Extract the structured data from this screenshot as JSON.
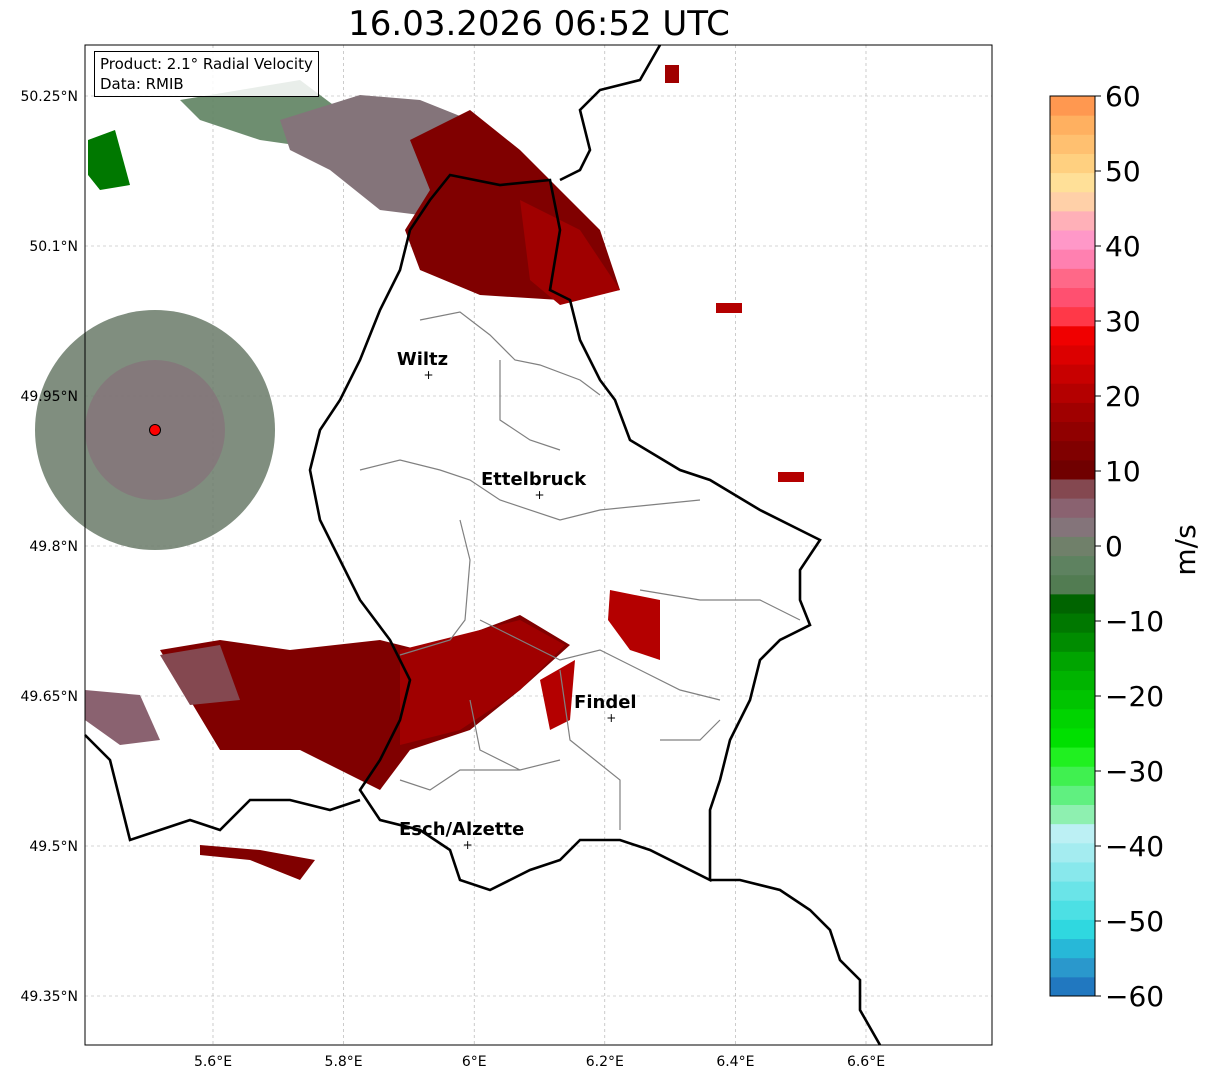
{
  "title": "16.03.2026 06:52 UTC",
  "legend": {
    "product": "Product: 2.1° Radial Velocity",
    "source": "Data: RMIB"
  },
  "axes": {
    "lon_ticks": [
      {
        "v": 5.6,
        "label": "5.6°E"
      },
      {
        "v": 5.8,
        "label": "5.8°E"
      },
      {
        "v": 6.0,
        "label": "6°E"
      },
      {
        "v": 6.2,
        "label": "6.2°E"
      },
      {
        "v": 6.4,
        "label": "6.4°E"
      },
      {
        "v": 6.6,
        "label": "6.6°E"
      }
    ],
    "lat_ticks": [
      {
        "v": 50.25,
        "label": "50.25°N"
      },
      {
        "v": 50.1,
        "label": "50.1°N"
      },
      {
        "v": 49.95,
        "label": "49.95°N"
      },
      {
        "v": 49.8,
        "label": "49.8°N"
      },
      {
        "v": 49.65,
        "label": "49.65°N"
      },
      {
        "v": 49.5,
        "label": "49.5°N"
      },
      {
        "v": 49.35,
        "label": "49.35°N"
      }
    ]
  },
  "cities": [
    {
      "name": "Wiltz",
      "lon": 5.93,
      "lat": 49.97
    },
    {
      "name": "Ettelbruck",
      "lon": 6.1,
      "lat": 49.85
    },
    {
      "name": "Findel",
      "lon": 6.21,
      "lat": 49.627
    },
    {
      "name": "Esch/Alzette",
      "lon": 5.99,
      "lat": 49.5
    }
  ],
  "radar_site": {
    "lon": 5.505,
    "lat": 49.915
  },
  "colorbar": {
    "label": "m/s",
    "min": -60,
    "max": 60,
    "ticks": [
      "60",
      "50",
      "40",
      "30",
      "20",
      "10",
      "0",
      "−10",
      "−20",
      "−30",
      "−40",
      "−50",
      "−60"
    ],
    "colors": [
      "#2178c0",
      "#2a98cc",
      "#27b8d8",
      "#2fd8e0",
      "#4ce0e4",
      "#6ae4e8",
      "#88e8ec",
      "#a4ecf0",
      "#bcf0f4",
      "#8ef0b0",
      "#60f080",
      "#40f050",
      "#20f020",
      "#00e000",
      "#00d400",
      "#00c400",
      "#00b400",
      "#00a400",
      "#008c00",
      "#007800",
      "#006400",
      "#527c52",
      "#5e8260",
      "#70806a",
      "#84747a",
      "#8a6270",
      "#844850",
      "#700000",
      "#800000",
      "#900000",
      "#a00000",
      "#b40000",
      "#c80000",
      "#dc0000",
      "#f00000",
      "#ff3848",
      "#ff5070",
      "#ff6888",
      "#ff80b0",
      "#ff98c8",
      "#ffb0b8",
      "#ffd0a8",
      "#ffe098",
      "#ffd080",
      "#ffc070",
      "#ffb060",
      "#ff9850"
    ]
  }
}
